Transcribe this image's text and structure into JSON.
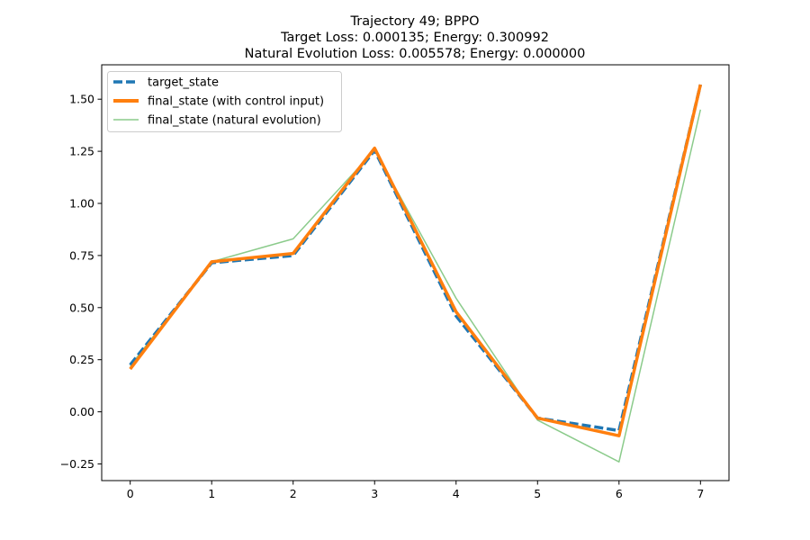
{
  "chart_data": {
    "type": "line",
    "title_lines": [
      "Trajectory 49; BPPO",
      "Target Loss: 0.000135; Energy: 0.300992",
      "Natural Evolution Loss: 0.005578; Energy: 0.000000"
    ],
    "xlabel": "",
    "ylabel": "",
    "x": [
      0,
      1,
      2,
      3,
      4,
      5,
      6,
      7
    ],
    "xlim": [
      -0.35,
      7.35
    ],
    "ylim": [
      -0.33,
      1.665
    ],
    "x_ticks": [
      0,
      1,
      2,
      3,
      4,
      5,
      6,
      7
    ],
    "x_tick_labels": [
      "0",
      "1",
      "2",
      "3",
      "4",
      "5",
      "6",
      "7"
    ],
    "y_ticks": [
      -0.25,
      0.0,
      0.25,
      0.5,
      0.75,
      1.0,
      1.25,
      1.5
    ],
    "y_tick_labels": [
      "−0.25",
      "0.00",
      "0.25",
      "0.50",
      "0.75",
      "1.00",
      "1.25",
      "1.50"
    ],
    "grid": false,
    "legend_position": "upper-left",
    "series": [
      {
        "name": "target_state",
        "values": [
          0.225,
          0.715,
          0.75,
          1.255,
          0.46,
          -0.03,
          -0.09,
          1.57
        ],
        "color": "#1f77b4",
        "style": "dashed"
      },
      {
        "name": "final_state (with control input)",
        "values": [
          0.205,
          0.72,
          0.76,
          1.265,
          0.48,
          -0.03,
          -0.115,
          1.57
        ],
        "color": "#ff7f0e",
        "style": "solid-thick"
      },
      {
        "name": "final_state (natural evolution)",
        "values": [
          0.22,
          0.72,
          0.83,
          1.255,
          0.545,
          -0.04,
          -0.24,
          1.45
        ],
        "color": "#2ca02c",
        "style": "solid-thin"
      }
    ]
  }
}
